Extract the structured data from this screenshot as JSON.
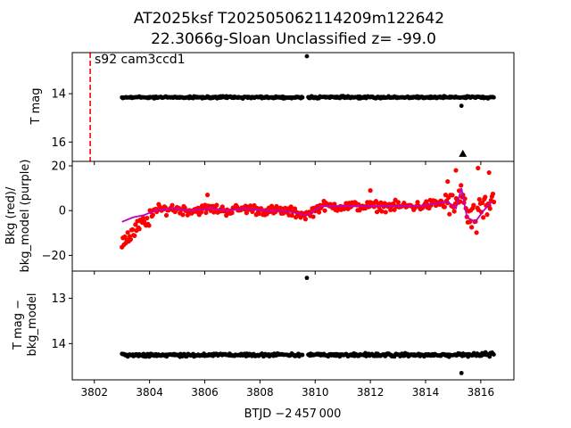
{
  "figure": {
    "title_line1": "AT2025ksf  T202505062114209m122642",
    "title_line2": "22.3066g-Sloan Unclassified z= -99.0",
    "annotation": "s92 cam3ccd1",
    "xlabel": "BTJD −2 457 000",
    "colors": {
      "raw": "#000000",
      "bkg": "#ff0000",
      "model": "#bf00bf",
      "marker_line": "#ff0000"
    }
  },
  "chart_data": [
    {
      "type": "scatter",
      "panel": "top",
      "ylabel": "T mag",
      "y_inverted": true,
      "ylim": [
        16.8,
        12.3
      ],
      "xlim": [
        3801.2,
        3817.2
      ],
      "yticks": [
        14,
        16
      ],
      "vertical_line_x": 3801.85,
      "main_band": {
        "x_start": 3803.0,
        "x_end": 3816.5,
        "y_center": 14.15,
        "y_spread": 0.06
      },
      "outliers": [
        {
          "x": 3809.7,
          "y": 12.45
        },
        {
          "x": 3815.3,
          "y": 14.5
        },
        {
          "x": 3815.35,
          "y": 16.5,
          "marker": "triangle"
        }
      ]
    },
    {
      "type": "scatter+line",
      "panel": "middle",
      "ylabel_line1": "Bkg (red)/",
      "ylabel_line2": "bkg_model (purple)",
      "ylim": [
        -27,
        22
      ],
      "xlim": [
        3801.2,
        3817.2
      ],
      "yticks": [
        -20,
        0,
        20
      ],
      "series": [
        {
          "name": "Bkg",
          "color": "#ff0000"
        },
        {
          "name": "bkg_model",
          "color": "#bf00bf",
          "x": [
            3803.0,
            3803.4,
            3803.8,
            3804.2,
            3804.8,
            3805.5,
            3806.2,
            3806.8,
            3807.5,
            3808.2,
            3808.8,
            3809.3,
            3809.7,
            3810.2,
            3811.0,
            3812.0,
            3813.0,
            3813.8,
            3814.3,
            3814.8,
            3815.1,
            3815.3,
            3815.5,
            3815.8,
            3816.1,
            3816.4
          ],
          "y": [
            -5,
            -3,
            -2,
            0,
            1,
            0,
            1,
            0,
            1,
            0,
            0,
            -1,
            -2,
            2,
            2,
            2,
            2,
            2,
            3,
            4,
            1,
            10,
            -3,
            -5,
            0,
            4
          ]
        }
      ]
    },
    {
      "type": "scatter",
      "panel": "bottom",
      "ylabel_line1": "T mag −",
      "ylabel_line2": "bkg_model",
      "y_inverted": true,
      "ylim": [
        14.8,
        12.4
      ],
      "xlim": [
        3801.2,
        3817.2
      ],
      "yticks": [
        13,
        14
      ],
      "xticks": [
        3802,
        3804,
        3806,
        3808,
        3810,
        3812,
        3814,
        3816
      ],
      "main_band": {
        "x_start": 3803.0,
        "x_end": 3816.5,
        "y_center": 14.25,
        "y_spread": 0.05
      },
      "outliers": [
        {
          "x": 3809.7,
          "y": 12.55
        },
        {
          "x": 3815.3,
          "y": 14.65
        }
      ]
    }
  ]
}
